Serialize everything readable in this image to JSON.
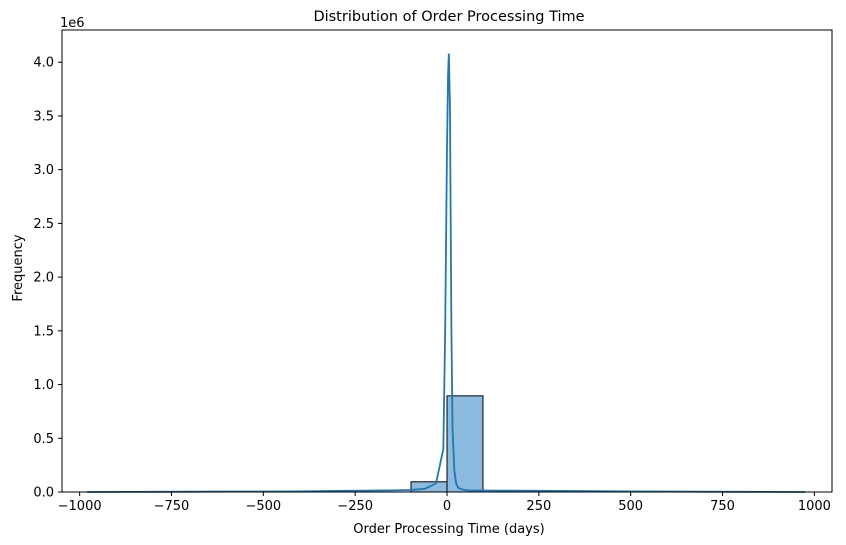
{
  "chart_data": {
    "type": "histogram",
    "title": "Distribution of Order Processing Time",
    "xlabel": "Order Processing Time (days)",
    "ylabel": "Frequency",
    "y_offset_label": "1e6",
    "xlim": [
      -1048,
      1048
    ],
    "ylim": [
      0,
      4300000
    ],
    "x_ticks": [
      -1000,
      -750,
      -500,
      -250,
      0,
      250,
      500,
      750,
      1000
    ],
    "x_tick_labels": [
      "−1000",
      "−750",
      "−500",
      "−250",
      "0",
      "250",
      "500",
      "750",
      "1000"
    ],
    "y_ticks": [
      0,
      500000,
      1000000,
      1500000,
      2000000,
      2500000,
      3000000,
      3500000,
      4000000
    ],
    "y_tick_labels": [
      "0.0",
      "0.5",
      "1.0",
      "1.5",
      "2.0",
      "2.5",
      "3.0",
      "3.5",
      "4.0"
    ],
    "grid": false,
    "bins": [
      {
        "x0": -980,
        "x1": -882,
        "count": 0
      },
      {
        "x0": -882,
        "x1": -784,
        "count": 0
      },
      {
        "x0": -784,
        "x1": -686,
        "count": 0
      },
      {
        "x0": -686,
        "x1": -588,
        "count": 0
      },
      {
        "x0": -588,
        "x1": -490,
        "count": 0
      },
      {
        "x0": -490,
        "x1": -392,
        "count": 0
      },
      {
        "x0": -392,
        "x1": -294,
        "count": 0
      },
      {
        "x0": -294,
        "x1": -196,
        "count": 0
      },
      {
        "x0": -196,
        "x1": -98,
        "count": 0
      },
      {
        "x0": -98,
        "x1": 0,
        "count": 95000
      },
      {
        "x0": 0,
        "x1": 98,
        "count": 895000
      },
      {
        "x0": 98,
        "x1": 196,
        "count": 0
      },
      {
        "x0": 196,
        "x1": 294,
        "count": 0
      },
      {
        "x0": 294,
        "x1": 392,
        "count": 0
      },
      {
        "x0": 392,
        "x1": 490,
        "count": 0
      },
      {
        "x0": 490,
        "x1": 588,
        "count": 0
      },
      {
        "x0": 588,
        "x1": 686,
        "count": 0
      },
      {
        "x0": 686,
        "x1": 784,
        "count": 0
      },
      {
        "x0": 784,
        "x1": 882,
        "count": 0
      },
      {
        "x0": 882,
        "x1": 980,
        "count": 0
      }
    ],
    "kde": {
      "x": [
        -980,
        -800,
        -600,
        -400,
        -300,
        -200,
        -150,
        -100,
        -60,
        -30,
        -10,
        -5,
        0,
        3,
        5,
        8,
        12,
        15,
        20,
        25,
        30,
        40,
        50,
        60,
        80,
        100,
        150,
        200,
        250,
        300,
        400,
        500,
        600,
        800,
        975
      ],
      "y": [
        0,
        2000,
        4000,
        6000,
        10000,
        14000,
        15000,
        18000,
        30000,
        80000,
        400000,
        1500000,
        3200000,
        3900000,
        4080000,
        3600000,
        1500000,
        600000,
        200000,
        80000,
        40000,
        25000,
        18000,
        15000,
        14000,
        14000,
        13000,
        12000,
        11000,
        10000,
        8000,
        6000,
        4000,
        2000,
        0
      ]
    },
    "colors": {
      "bar_fill": "#8dbadf",
      "bar_edge": "#000000",
      "kde_line": "#1f77b4",
      "axes": "#000000"
    }
  }
}
